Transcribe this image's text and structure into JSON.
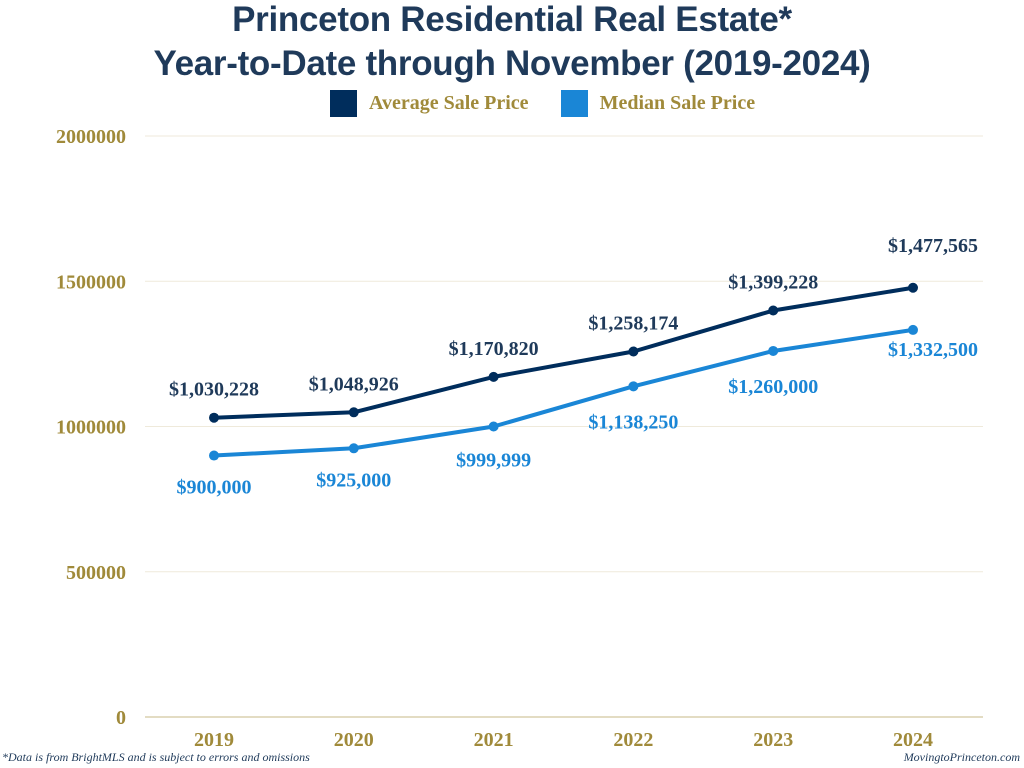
{
  "chart_data": {
    "type": "line",
    "title": "Princeton Residential Real Estate*",
    "subtitle": "Year-to-Date through November (2019-2024)",
    "xlabel": "",
    "ylabel": "",
    "categories": [
      "2019",
      "2020",
      "2021",
      "2022",
      "2023",
      "2024"
    ],
    "ylim": [
      0,
      2000000
    ],
    "yticks": [
      0,
      500000,
      1000000,
      1500000,
      2000000
    ],
    "ytick_labels": [
      "0",
      "500000",
      "1000000",
      "1500000",
      "2000000"
    ],
    "grid": true,
    "legend_position": "top-center",
    "series": [
      {
        "name": "Average Sale Price",
        "color": "#002d5c",
        "values": [
          1030228,
          1048926,
          1170820,
          1258174,
          1399228,
          1477565
        ],
        "labels": [
          "$1,030,228",
          "$1,048,926",
          "$1,170,820",
          "$1,258,174",
          "$1,399,228",
          "$1,477,565"
        ],
        "label_position": "above"
      },
      {
        "name": "Median Sale Price",
        "color": "#1a86d6",
        "values": [
          900000,
          925000,
          999999,
          1138250,
          1260000,
          1332500
        ],
        "labels": [
          "$900,000",
          "$925,000",
          "$999,999",
          "$1,138,250",
          "$1,260,000",
          "$1,332,500"
        ],
        "label_position": "below"
      }
    ]
  },
  "colors": {
    "title": "#1f3a5a",
    "axis_text": "#a08a3a",
    "gridline": "#efeadb",
    "average_label": "#1f3a5a",
    "median_label": "#1a86d6"
  },
  "footnote_left": "*Data is from BrightMLS and is subject to errors and omissions",
  "footnote_right": "MovingtoPrinceton.com"
}
